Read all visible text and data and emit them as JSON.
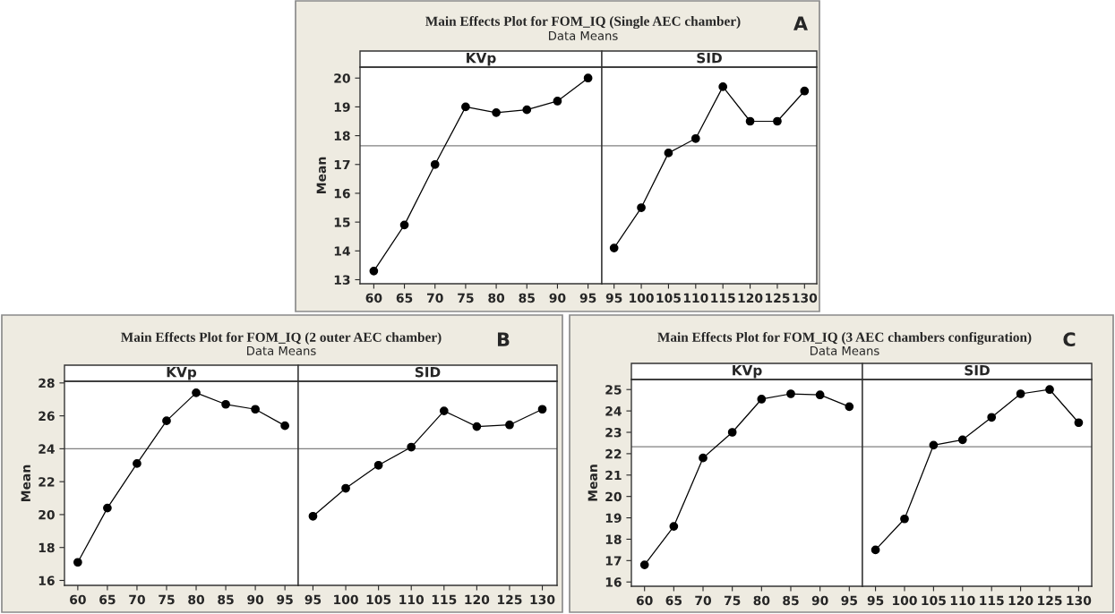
{
  "chart_data": [
    {
      "type": "line",
      "title": "KVp",
      "ylabel": "Mean",
      "annotations": [
        "Main Effects Plot for FOM_IQ (Single AEC chamber)",
        "Data Means",
        "A"
      ],
      "categories": [
        "60",
        "65",
        "70",
        "75",
        "80",
        "85",
        "90",
        "95"
      ],
      "series": [
        {
          "color": "#000000",
          "values": [
            13.3,
            14.9,
            17.0,
            19.0,
            18.8,
            18.9,
            19.2,
            20.0
          ]
        }
      ],
      "ylim": [
        12.86,
        20.38
      ],
      "yticks": [
        13,
        14,
        15,
        16,
        17,
        18,
        19,
        20
      ],
      "ref_lines": [
        {
          "axis": "y",
          "value": 17.65,
          "color": "#808080"
        }
      ],
      "marker": "circle",
      "grid": false,
      "legend": false
    },
    {
      "type": "line",
      "title": "SID",
      "categories": [
        "95",
        "100",
        "105",
        "110",
        "115",
        "120",
        "125",
        "130"
      ],
      "series": [
        {
          "color": "#000000",
          "values": [
            14.1,
            15.5,
            17.4,
            17.9,
            19.7,
            18.5,
            18.5,
            19.55
          ]
        }
      ],
      "ylim": [
        12.86,
        20.38
      ],
      "tick_labels": "x",
      "ref_lines": [
        {
          "axis": "y",
          "value": 17.65,
          "color": "#808080"
        }
      ],
      "marker": "circle",
      "grid": false,
      "legend": false
    },
    {
      "type": "line",
      "title": "KVp",
      "ylabel": "Mean",
      "annotations": [
        "Main Effects Plot for FOM_IQ (2 outer AEC chamber)",
        "Data Means",
        "B"
      ],
      "categories": [
        "60",
        "65",
        "70",
        "75",
        "80",
        "85",
        "90",
        "95"
      ],
      "series": [
        {
          "color": "#000000",
          "values": [
            17.1,
            20.4,
            23.1,
            25.7,
            27.4,
            26.7,
            26.4,
            25.4
          ]
        }
      ],
      "ylim": [
        15.7,
        28.1
      ],
      "yticks": [
        16,
        18,
        20,
        22,
        24,
        26,
        28
      ],
      "ref_lines": [
        {
          "axis": "y",
          "value": 24.0,
          "color": "#808080"
        }
      ],
      "marker": "circle",
      "grid": false,
      "legend": false
    },
    {
      "type": "line",
      "title": "SID",
      "categories": [
        "95",
        "100",
        "105",
        "110",
        "115",
        "120",
        "125",
        "130"
      ],
      "series": [
        {
          "color": "#000000",
          "values": [
            19.9,
            21.6,
            23.0,
            24.1,
            26.3,
            25.35,
            25.45,
            26.4
          ]
        }
      ],
      "ylim": [
        15.7,
        28.1
      ],
      "tick_labels": "x",
      "ref_lines": [
        {
          "axis": "y",
          "value": 24.0,
          "color": "#808080"
        }
      ],
      "marker": "circle",
      "grid": false,
      "legend": false
    },
    {
      "type": "line",
      "title": "KVp",
      "ylabel": "Mean",
      "annotations": [
        "Main Effects Plot for FOM_IQ (3 AEC chambers configuration)",
        "Data Means",
        "C"
      ],
      "categories": [
        "60",
        "65",
        "70",
        "75",
        "80",
        "85",
        "90",
        "95"
      ],
      "series": [
        {
          "color": "#000000",
          "values": [
            16.8,
            18.6,
            21.8,
            23.0,
            24.55,
            24.8,
            24.75,
            24.2
          ]
        }
      ],
      "ylim": [
        15.8,
        25.47
      ],
      "yticks": [
        16,
        17,
        18,
        19,
        20,
        21,
        22,
        23,
        24,
        25
      ],
      "ref_lines": [
        {
          "axis": "y",
          "value": 22.33,
          "color": "#808080"
        }
      ],
      "marker": "circle",
      "grid": false,
      "legend": false
    },
    {
      "type": "line",
      "title": "SID",
      "categories": [
        "95",
        "100",
        "105",
        "110",
        "115",
        "120",
        "125",
        "130"
      ],
      "series": [
        {
          "color": "#000000",
          "values": [
            17.5,
            18.95,
            22.4,
            22.65,
            23.7,
            24.8,
            25.0,
            23.45
          ]
        }
      ],
      "ylim": [
        15.8,
        25.47
      ],
      "tick_labels": "x",
      "ref_lines": [
        {
          "axis": "y",
          "value": 22.33,
          "color": "#808080"
        }
      ],
      "marker": "circle",
      "grid": false,
      "legend": false
    }
  ]
}
